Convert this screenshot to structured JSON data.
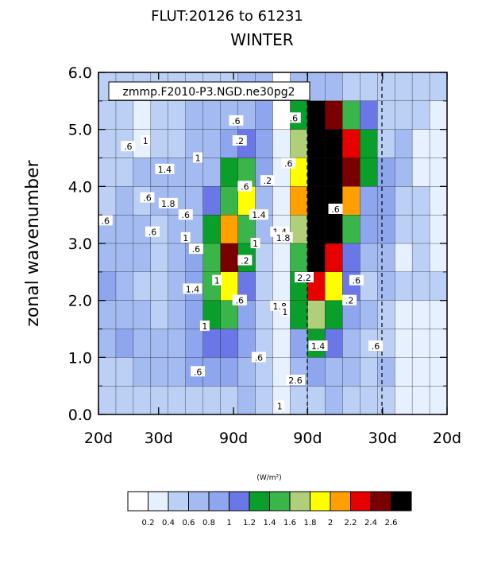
{
  "chart_data": {
    "type": "contour",
    "title": "FLUT:20126 to 61231",
    "subtitle": "WINTER",
    "annotation": "zmmp.F2010-P3.NGD.ne30pg2",
    "ylabel": "zonal wavenumber",
    "xlabel": "",
    "ylim": [
      0,
      6
    ],
    "y_ticks": [
      "0.0",
      "1.0",
      "2.0",
      "3.0",
      "4.0",
      "5.0",
      "6.0"
    ],
    "x_tick_labels": [
      "20d",
      "30d",
      "90d",
      "90d",
      "30d",
      "20d"
    ],
    "x_reference_lines": [
      "90d",
      "30d"
    ],
    "units": "(W/m²)",
    "colorbar": {
      "levels": [
        "0.2",
        "0.4",
        "0.6",
        "0.8",
        "1",
        "1.2",
        "1.4",
        "1.6",
        "1.8",
        "2",
        "2.2",
        "2.4",
        "2.6"
      ],
      "colors": [
        "#ffffff",
        "#e6f0ff",
        "#bcd0f5",
        "#a3bbf1",
        "#8da6ee",
        "#6b77e6",
        "#0a9e2a",
        "#3ab54a",
        "#b0cf78",
        "#ffff00",
        "#ffa000",
        "#e60000",
        "#7a0000",
        "#000000"
      ]
    },
    "contour_labels": [
      ".6",
      "1",
      "1.4",
      "1.8",
      ".6",
      "1",
      ".2",
      ".2",
      ".2",
      ".2",
      ".6",
      "1.4",
      "1",
      "1",
      ".6",
      "1.4",
      "1.8",
      "2.2",
      "1",
      ".6",
      ".6",
      ".6",
      ".6",
      ".6",
      "1",
      ".6",
      "1.4",
      "1.8",
      "2.6",
      "1.4",
      "1",
      ".2",
      ".6",
      ".6",
      ".6",
      ".6",
      ".6",
      "1",
      ".6"
    ],
    "contour_label_cols": [
      -8.3,
      -7.3,
      -6.2,
      -6.0,
      -5.0,
      -5.0,
      -1.9,
      -0.3,
      -1.6,
      -1.9,
      -1.9,
      -0.8,
      -1.0,
      -4.3,
      -7.2,
      -4.6,
      0.4,
      1.8,
      0.7,
      -1.6,
      0.9,
      -6.9,
      -9.6,
      -4.4,
      -3.9,
      -4.3,
      0.4,
      0.6,
      1.3,
      2.6,
      0.4,
      4.4,
      4.8,
      5.9,
      3.6,
      1.2,
      -2.1,
      -3.2,
      -0.8
    ],
    "contour_label_rows": [
      4.7,
      4.8,
      4.3,
      3.7,
      3.5,
      3.1,
      4.8,
      4.1,
      2.7,
      2.0,
      2.0,
      3.5,
      3.0,
      4.5,
      3.8,
      2.2,
      1.9,
      2.4,
      1.8,
      4.0,
      4.4,
      3.2,
      3.4,
      2.9,
      1.55,
      0.75,
      3.2,
      3.1,
      0.6,
      1.2,
      0.15,
      2.0,
      2.35,
      1.2,
      3.6,
      5.2,
      5.15,
      2.35,
      1.0
    ],
    "grid_cols": 20,
    "grid_rows": 12,
    "field": [
      [
        0.5,
        0.5,
        0.5,
        0.5,
        0.5,
        0.5,
        0.4,
        0.5,
        0.6,
        0.6,
        0.0,
        0.6,
        0.6,
        0.6,
        0.5,
        0.5,
        0.4,
        0.5,
        0.4,
        0.4
      ],
      [
        0.4,
        0.5,
        0.3,
        0.4,
        0.5,
        0.6,
        0.6,
        0.6,
        0.7,
        0.8,
        0.1,
        1.2,
        2.6,
        2.5,
        1.5,
        1.1,
        0.4,
        0.5,
        0.4,
        0.3
      ],
      [
        0.4,
        0.4,
        0.3,
        0.5,
        0.5,
        0.6,
        0.7,
        0.8,
        1.0,
        0.9,
        0.2,
        1.6,
        2.7,
        2.7,
        2.2,
        1.3,
        0.5,
        0.6,
        0.3,
        0.3
      ],
      [
        0.4,
        0.5,
        0.6,
        0.6,
        0.6,
        0.7,
        0.7,
        1.2,
        1.5,
        0.8,
        0.2,
        1.8,
        2.8,
        2.8,
        2.4,
        1.2,
        0.8,
        0.6,
        0.3,
        0.3
      ],
      [
        0.5,
        0.6,
        0.5,
        0.6,
        0.6,
        0.6,
        1.0,
        1.5,
        1.8,
        0.7,
        0.2,
        2.0,
        2.8,
        2.7,
        2.0,
        0.9,
        0.8,
        0.4,
        0.4,
        0.3
      ],
      [
        0.6,
        0.7,
        0.6,
        0.5,
        0.6,
        0.7,
        1.2,
        2.0,
        1.5,
        0.6,
        0.2,
        1.7,
        2.8,
        2.6,
        1.4,
        0.8,
        0.9,
        0.4,
        0.5,
        0.3
      ],
      [
        0.7,
        0.6,
        0.6,
        0.5,
        0.6,
        0.8,
        1.4,
        2.4,
        1.2,
        0.5,
        0.2,
        1.4,
        2.6,
        2.3,
        1.1,
        0.6,
        0.6,
        0.3,
        0.4,
        0.3
      ],
      [
        0.8,
        0.7,
        0.5,
        0.5,
        0.6,
        0.8,
        1.4,
        1.9,
        1.0,
        0.5,
        0.2,
        1.3,
        2.2,
        1.8,
        1.0,
        0.5,
        0.6,
        0.4,
        0.4,
        0.4
      ],
      [
        0.7,
        0.6,
        0.6,
        0.5,
        0.7,
        0.8,
        1.3,
        1.5,
        0.8,
        0.5,
        0.2,
        1.2,
        1.7,
        1.3,
        0.9,
        0.6,
        0.5,
        0.3,
        0.3,
        0.3
      ],
      [
        0.6,
        0.8,
        0.6,
        0.6,
        0.7,
        0.9,
        1.1,
        1.0,
        0.8,
        0.4,
        0.2,
        0.9,
        1.2,
        1.0,
        0.7,
        0.5,
        0.5,
        0.3,
        0.2,
        0.2
      ],
      [
        0.5,
        0.5,
        0.6,
        0.6,
        0.7,
        0.8,
        0.9,
        0.8,
        0.7,
        0.4,
        0.2,
        0.7,
        0.8,
        0.7,
        0.6,
        0.5,
        0.6,
        0.3,
        0.3,
        0.2
      ],
      [
        0.4,
        0.4,
        0.4,
        0.5,
        0.5,
        0.5,
        0.5,
        0.5,
        0.6,
        0.4,
        0.2,
        0.4,
        0.5,
        0.6,
        0.5,
        0.4,
        0.4,
        0.3,
        0.3,
        0.2
      ]
    ]
  }
}
